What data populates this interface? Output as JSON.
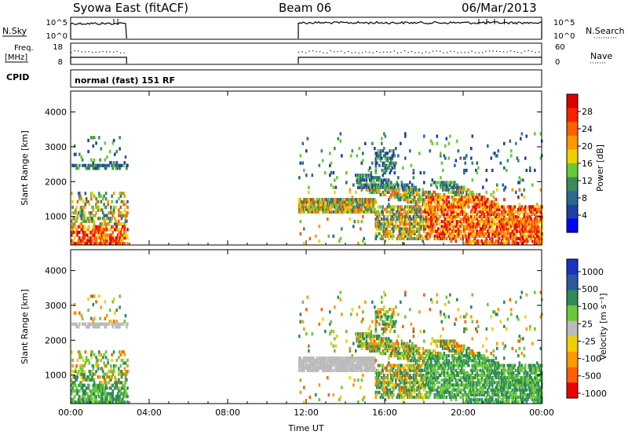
{
  "header": {
    "station": "Syowa East (fitACF)",
    "beam": "Beam 06",
    "date": "06/Mar/2013"
  },
  "top_panels": {
    "nsky_label": "N.Sky",
    "nsky_ticks": [
      "10^5",
      "10^0"
    ],
    "nsearch_label": "N.Search",
    "nsearch_ticks": [
      "10^5",
      "10^0"
    ],
    "freq_label": "Freq.",
    "freq_unit": "[MHz]",
    "freq_ticks": [
      "18",
      "8"
    ],
    "nave_label": "Nave",
    "nave_ticks": [
      "60",
      "0"
    ],
    "cpid_label": "CPID",
    "cpid_value": "normal (fast) 151 RF"
  },
  "colors": {
    "power": [
      "#0000ff",
      "#1f3fa8",
      "#2a6a8a",
      "#3c8a5a",
      "#66cc33",
      "#f0d000",
      "#ff9900",
      "#ff6000",
      "#ff2000",
      "#dd0000"
    ],
    "velocity": [
      "#1a33c0",
      "#2a5aa0",
      "#2e8a5a",
      "#6ac83a",
      "#bbbbbb",
      "#f0d000",
      "#ff9900",
      "#ff6000",
      "#ee0000"
    ]
  },
  "chart_data": [
    {
      "type": "heatmap",
      "name": "power",
      "ylabel": "Slant Range [km]",
      "ylim": [
        180,
        4600
      ],
      "y_ticks": [
        "1000",
        "2000",
        "3000",
        "4000"
      ],
      "x_ticks": [
        "00:00",
        "04:00",
        "08:00",
        "12:00",
        "16:00",
        "20:00",
        "00:00"
      ],
      "colorbar_label": "Power [dB]",
      "colorbar_ticks": [
        "4",
        "8",
        "12",
        "16",
        "20",
        "24",
        "28"
      ],
      "colorbar_range": [
        0,
        30
      ]
    },
    {
      "type": "heatmap",
      "name": "velocity",
      "xlabel": "Time UT",
      "ylabel": "Slant Range [km]",
      "ylim": [
        180,
        4600
      ],
      "y_ticks": [
        "1000",
        "2000",
        "3000",
        "4000"
      ],
      "x_ticks": [
        "00:00",
        "04:00",
        "08:00",
        "12:00",
        "16:00",
        "20:00",
        "00:00"
      ],
      "colorbar_label": "Velocity [m s⁻¹]",
      "colorbar_ticks": [
        "1000",
        "500",
        "100",
        "25",
        "-25",
        "-100",
        "-500",
        "-1000"
      ]
    }
  ]
}
